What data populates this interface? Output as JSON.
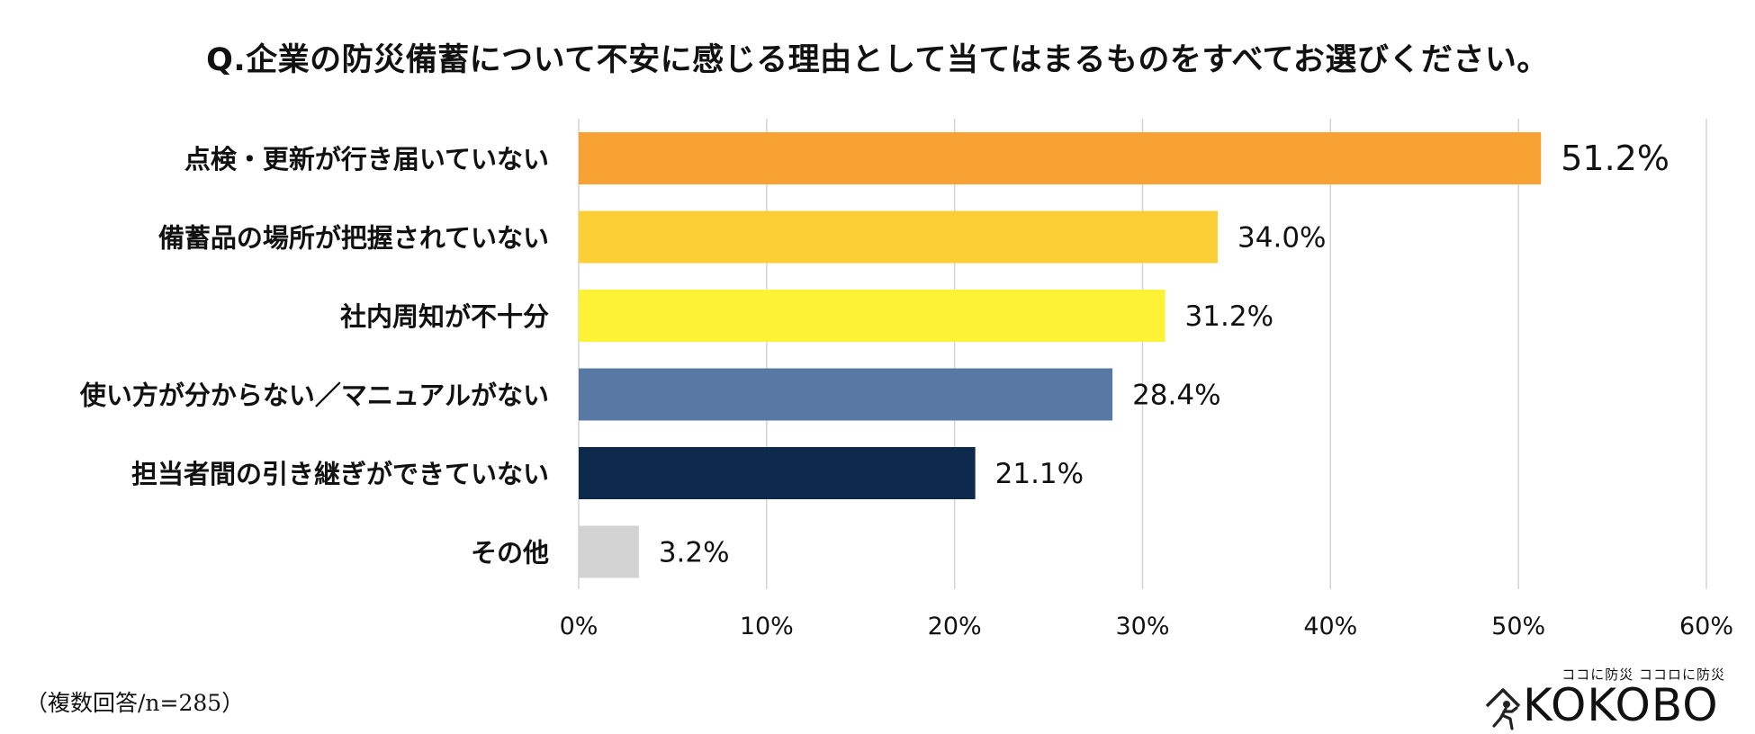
{
  "footnote": "（複数回答/n=285）",
  "brand": {
    "tagline": "ココに防災 ココロに防災",
    "wordmark": "KOKOBO"
  },
  "chart_data": {
    "type": "bar",
    "orientation": "horizontal",
    "title": "Q.企業の防災備蓄について不安に感じる理由として当てはまるものをすべてお選びください。",
    "xlabel": "",
    "ylabel": "",
    "xlim": [
      0,
      60
    ],
    "ticks": [
      "0%",
      "10%",
      "20%",
      "30%",
      "40%",
      "50%",
      "60%"
    ],
    "tick_values": [
      0,
      10,
      20,
      30,
      40,
      50,
      60
    ],
    "grid": true,
    "categories": [
      "点検・更新が行き届いていない",
      "備蓄品の場所が把握されていない",
      "社内周知が不十分",
      "使い方が分からない／マニュアルがない",
      "担当者間の引き継ぎができていない",
      "その他"
    ],
    "values": [
      51.2,
      34.0,
      31.2,
      28.4,
      21.1,
      3.2
    ],
    "value_labels": [
      "51.2%",
      "34.0%",
      "31.2%",
      "28.4%",
      "21.1%",
      "3.2%"
    ],
    "colors": [
      "#F9A234",
      "#FDCF37",
      "#FEF236",
      "#5779A4",
      "#0D2A4C",
      "#D3D3D3"
    ]
  }
}
